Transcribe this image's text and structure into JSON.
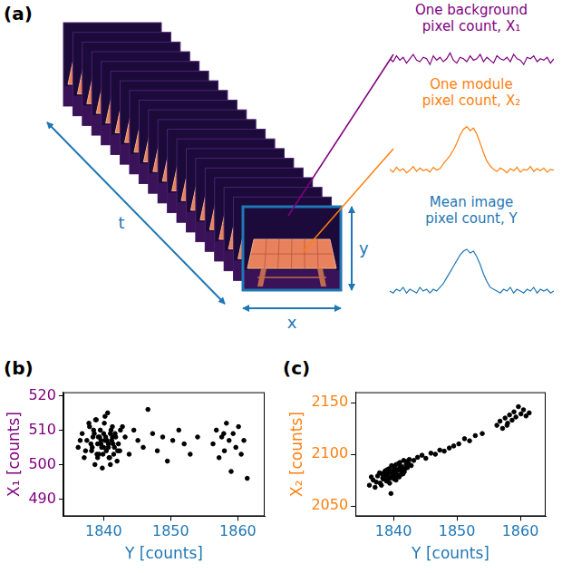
{
  "diagram": {
    "panel": "(a)",
    "axis_labels": {
      "t": "t",
      "x": "x",
      "y": "y"
    },
    "traces": [
      {
        "title": "One background pixel count, X₁",
        "type": "line",
        "color": "#800080",
        "tick_labels": false,
        "values": [
          507,
          505,
          509,
          506,
          508,
          504,
          507,
          510,
          506,
          505,
          508,
          507,
          503,
          509,
          506,
          508,
          505,
          507,
          511,
          506,
          504,
          508,
          507,
          505,
          509,
          506,
          507,
          510,
          505,
          508,
          506,
          504,
          509,
          507,
          506,
          508,
          505,
          510,
          507,
          506,
          503,
          508,
          507,
          509,
          505,
          507,
          506,
          508,
          504,
          507
        ]
      },
      {
        "title": "One module pixel count, X₂",
        "type": "line",
        "color": "#ff7f0e",
        "tick_labels": false,
        "values": [
          2080,
          2076,
          2083,
          2078,
          2081,
          2075,
          2079,
          2084,
          2077,
          2082,
          2078,
          2080,
          2076,
          2083,
          2079,
          2081,
          2088,
          2094,
          2100,
          2108,
          2118,
          2130,
          2138,
          2142,
          2136,
          2140,
          2131,
          2118,
          2104,
          2092,
          2085,
          2080,
          2077,
          2082,
          2079,
          2075,
          2081,
          2078,
          2083,
          2076,
          2080,
          2079,
          2084,
          2077,
          2081,
          2078,
          2082,
          2076,
          2080,
          2079
        ]
      },
      {
        "title": "Mean image pixel count, Y",
        "type": "line",
        "color": "#1f77b4",
        "tick_labels": false,
        "values": [
          1839,
          1838,
          1840,
          1839,
          1841,
          1838,
          1840,
          1839,
          1838,
          1841,
          1839,
          1840,
          1838,
          1840,
          1839,
          1841,
          1843,
          1846,
          1849,
          1852,
          1855,
          1858,
          1860,
          1861,
          1859,
          1860,
          1857,
          1853,
          1848,
          1844,
          1841,
          1840,
          1839,
          1838,
          1840,
          1839,
          1841,
          1838,
          1840,
          1839,
          1838,
          1840,
          1839,
          1841,
          1838,
          1840,
          1839,
          1840,
          1838,
          1839
        ]
      }
    ]
  },
  "chart_data": [
    {
      "panel": "(b)",
      "type": "scatter",
      "xlabel": "Y [counts]",
      "ylabel": "X₁ [counts]",
      "xlim": [
        1834,
        1864
      ],
      "xticks": [
        1840,
        1850,
        1860
      ],
      "ylim": [
        485,
        521
      ],
      "yticks": [
        490,
        500,
        510,
        520
      ],
      "grid": false,
      "color": "#000000",
      "marker": "circle",
      "x": [
        1836.2,
        1836.8,
        1837.1,
        1837.5,
        1837.9,
        1838.2,
        1838.4,
        1838.7,
        1838.9,
        1839.1,
        1839.3,
        1839.5,
        1839.6,
        1839.8,
        1840.0,
        1840.1,
        1840.3,
        1840.4,
        1840.6,
        1840.7,
        1840.9,
        1841.0,
        1841.2,
        1841.3,
        1841.5,
        1841.6,
        1841.8,
        1842.0,
        1842.2,
        1842.5,
        1836.5,
        1837.3,
        1837.8,
        1838.1,
        1838.6,
        1839.0,
        1839.4,
        1839.7,
        1840.2,
        1840.5,
        1840.8,
        1841.1,
        1841.4,
        1841.7,
        1842.1,
        1842.8,
        1838.3,
        1839.2,
        1839.9,
        1840.4,
        1841.0,
        1839.6,
        1840.0,
        1838.8,
        1840.7,
        1841.3,
        1839.1,
        1840.2,
        1838.5,
        1842.4,
        1843.2,
        1843.8,
        1844.5,
        1845.1,
        1845.9,
        1846.6,
        1847.3,
        1848.0,
        1848.8,
        1849.5,
        1850.3,
        1851.2,
        1852.0,
        1852.9,
        1854.0,
        1856.3,
        1856.8,
        1857.2,
        1857.6,
        1858.0,
        1858.3,
        1858.7,
        1859.0,
        1859.3,
        1859.7,
        1860.1,
        1860.5,
        1860.9,
        1861.4,
        1857.9
      ],
      "values": [
        505,
        509,
        502,
        507,
        511,
        504,
        508,
        500,
        513,
        506,
        503,
        510,
        507,
        499,
        505,
        512,
        508,
        504,
        515,
        506,
        502,
        509,
        507,
        511,
        503,
        505,
        508,
        501,
        506,
        510,
        507,
        504,
        512,
        506,
        509,
        503,
        508,
        505,
        514,
        507,
        502,
        510,
        506,
        509,
        504,
        511,
        505,
        508,
        503,
        507,
        500,
        506,
        509,
        513,
        505,
        508,
        502,
        507,
        510,
        504,
        508,
        503,
        510,
        507,
        505,
        516,
        509,
        504,
        508,
        501,
        507,
        510,
        506,
        503,
        508,
        506,
        510,
        502,
        508,
        504,
        512,
        507,
        498,
        509,
        505,
        511,
        503,
        507,
        496,
        509
      ]
    },
    {
      "panel": "(c)",
      "type": "scatter",
      "xlabel": "Y [counts]",
      "ylabel": "X₂ [counts]",
      "xlim": [
        1834,
        1864
      ],
      "xticks": [
        1840,
        1850,
        1860
      ],
      "ylim": [
        2040,
        2160
      ],
      "yticks": [
        2050,
        2100,
        2150
      ],
      "grid": false,
      "color": "#000000",
      "marker": "circle",
      "x": [
        1836.2,
        1836.8,
        1837.1,
        1837.5,
        1837.9,
        1838.2,
        1838.4,
        1838.7,
        1838.9,
        1839.1,
        1839.3,
        1839.5,
        1839.6,
        1839.8,
        1840.0,
        1840.1,
        1840.3,
        1840.4,
        1840.6,
        1840.7,
        1840.9,
        1841.0,
        1841.2,
        1841.3,
        1841.5,
        1841.6,
        1841.8,
        1842.0,
        1842.2,
        1842.5,
        1836.5,
        1837.3,
        1837.8,
        1838.1,
        1838.6,
        1839.0,
        1839.4,
        1839.7,
        1840.2,
        1840.5,
        1840.8,
        1841.1,
        1841.4,
        1841.7,
        1842.1,
        1842.8,
        1838.3,
        1839.2,
        1839.9,
        1840.4,
        1841.0,
        1839.6,
        1840.0,
        1838.8,
        1840.7,
        1841.3,
        1839.1,
        1840.2,
        1838.5,
        1842.4,
        1843.2,
        1843.8,
        1844.5,
        1845.1,
        1845.9,
        1846.6,
        1847.3,
        1848.0,
        1848.8,
        1849.5,
        1850.3,
        1851.2,
        1852.0,
        1852.9,
        1854.0,
        1856.3,
        1856.8,
        1857.2,
        1857.6,
        1858.0,
        1858.3,
        1858.7,
        1859.0,
        1859.3,
        1859.7,
        1860.1,
        1860.5,
        1860.9,
        1861.4,
        1857.9
      ],
      "values": [
        2070,
        2075,
        2068,
        2079,
        2072,
        2081,
        2076,
        2084,
        2074,
        2080,
        2086,
        2077,
        2083,
        2079,
        2088,
        2076,
        2082,
        2090,
        2080,
        2085,
        2078,
        2092,
        2084,
        2088,
        2081,
        2094,
        2086,
        2090,
        2087,
        2095,
        2078,
        2073,
        2082,
        2070,
        2079,
        2085,
        2072,
        2089,
        2078,
        2084,
        2091,
        2080,
        2086,
        2083,
        2093,
        2089,
        2077,
        2083,
        2081,
        2075,
        2087,
        2062,
        2084,
        2080,
        2079,
        2083,
        2076,
        2086,
        2082,
        2091,
        2094,
        2097,
        2099,
        2096,
        2101,
        2100,
        2104,
        2103,
        2106,
        2108,
        2110,
        2115,
        2113,
        2118,
        2120,
        2128,
        2132,
        2125,
        2135,
        2130,
        2138,
        2133,
        2141,
        2136,
        2146,
        2139,
        2143,
        2137,
        2140,
        2128
      ]
    }
  ]
}
